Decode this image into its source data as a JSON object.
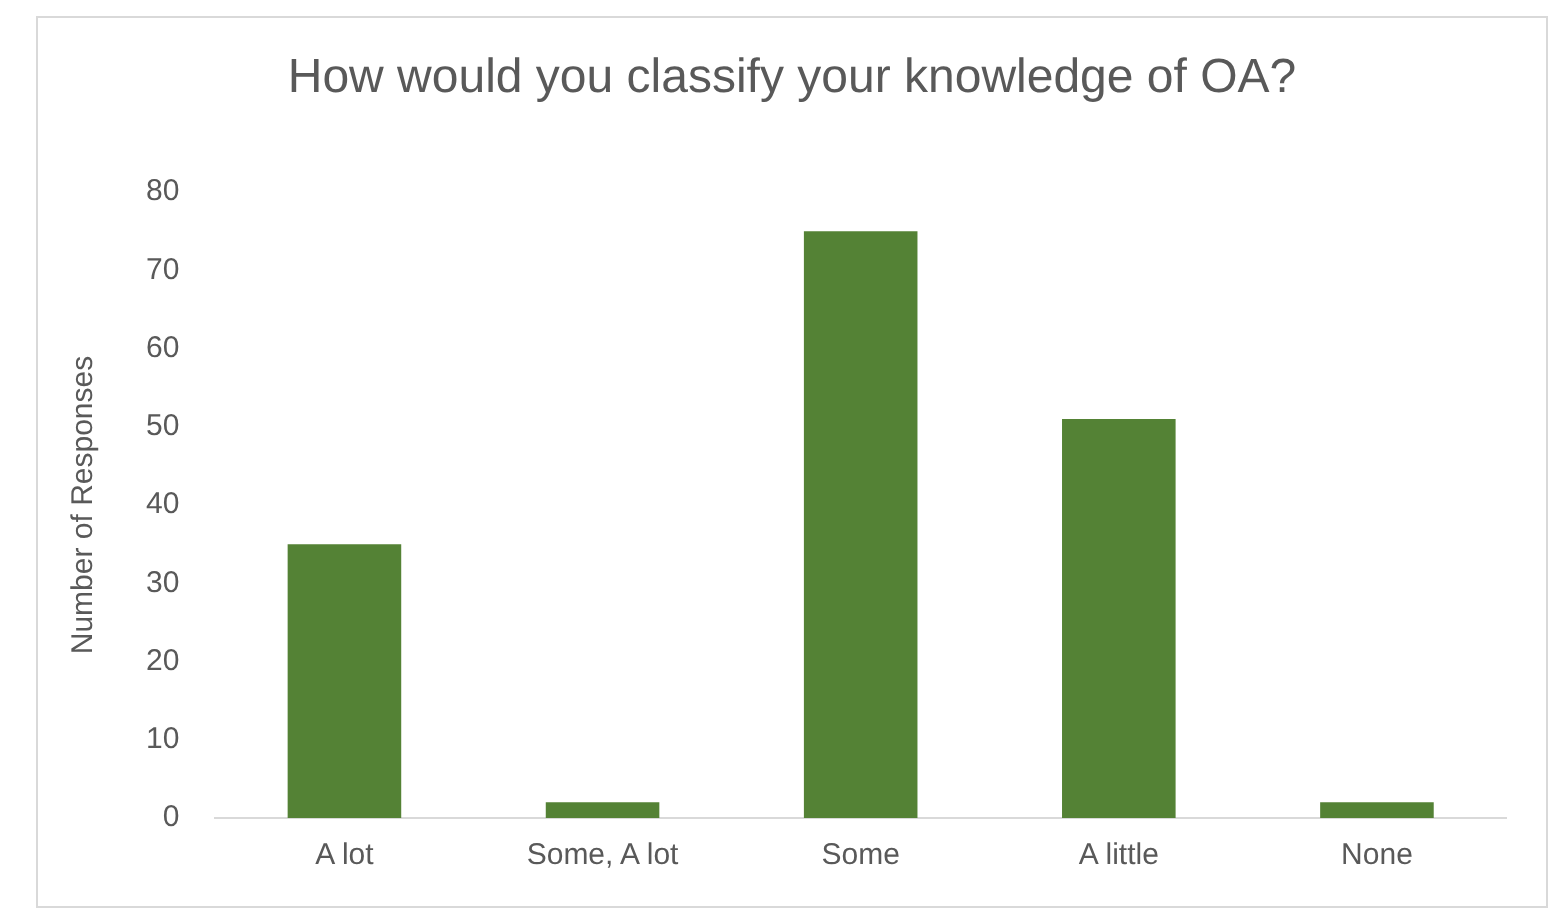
{
  "chart_data": {
    "type": "bar",
    "title": "How would you classify your knowledge of OA?",
    "ylabel": "Number of Responses",
    "categories": [
      "A lot",
      "Some, A lot",
      "Some",
      "A little",
      "None"
    ],
    "values": [
      35,
      2,
      75,
      51,
      2
    ],
    "color": "#548235",
    "ylim": [
      0,
      80
    ],
    "yticks": [
      0,
      10,
      20,
      30,
      40,
      50,
      60,
      70,
      80
    ],
    "grid": false,
    "legend": false
  }
}
